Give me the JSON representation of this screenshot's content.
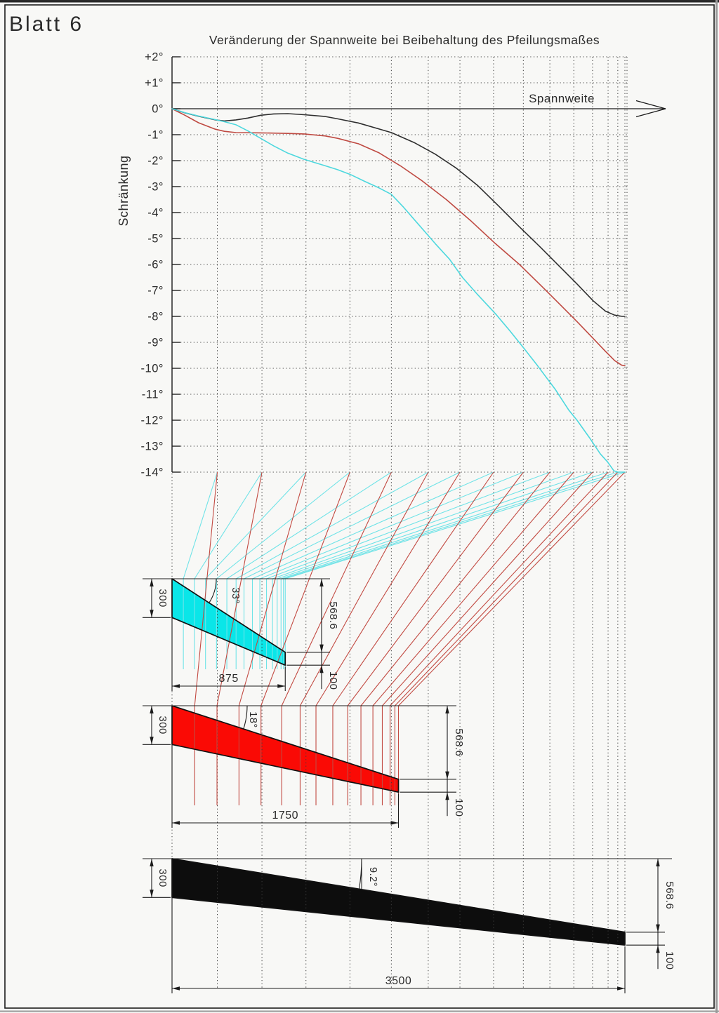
{
  "sheet": {
    "label": "Blatt 6",
    "border_color": "#1c1c1c",
    "paper_color": "#f8f8f6"
  },
  "chart": {
    "title": "Veränderung der Spannweite bei Beibehaltung des Pfeilungsmaßes",
    "xlabel": "Spannweite",
    "ylabel": "Schränkung",
    "y_ticks": [
      {
        "deg": 2,
        "label": "+2°"
      },
      {
        "deg": 1,
        "label": "+1°"
      },
      {
        "deg": 0,
        "label": "0°"
      },
      {
        "deg": -1,
        "label": "-1°"
      },
      {
        "deg": -2,
        "label": "-2°"
      },
      {
        "deg": -3,
        "label": "-3°"
      },
      {
        "deg": -4,
        "label": "-4°"
      },
      {
        "deg": -5,
        "label": "-5°"
      },
      {
        "deg": -6,
        "label": "-6°"
      },
      {
        "deg": -7,
        "label": "-7°"
      },
      {
        "deg": -8,
        "label": "-8°"
      },
      {
        "deg": -9,
        "label": "-9°"
      },
      {
        "deg": -10,
        "label": "-10°"
      },
      {
        "deg": -11,
        "label": "-11°"
      },
      {
        "deg": -12,
        "label": "-12°"
      },
      {
        "deg": -13,
        "label": "-13°"
      },
      {
        "deg": -14,
        "label": "-14°"
      }
    ],
    "span_mm": 3500,
    "stations_mm": [
      350,
      695,
      1035,
      1375,
      1695,
      1980,
      2225,
      2485,
      2715,
      2920,
      3105,
      3250,
      3370,
      3445,
      3500
    ],
    "chart_data": {
      "type": "line",
      "xlabel": "Spannweite",
      "ylabel": "Schränkung",
      "ylim": [
        -14,
        2
      ],
      "series": [
        {
          "name": "Spannweite 3500",
          "color": "#2e2e2e",
          "points": [
            [
              0,
              0
            ],
            [
              100,
              -0.16
            ],
            [
              205,
              -0.29
            ],
            [
              335,
              -0.43
            ],
            [
              405,
              -0.47
            ],
            [
              495,
              -0.43
            ],
            [
              585,
              -0.36
            ],
            [
              685,
              -0.25
            ],
            [
              785,
              -0.2
            ],
            [
              895,
              -0.19
            ],
            [
              1020,
              -0.23
            ],
            [
              1185,
              -0.3
            ],
            [
              1280,
              -0.39
            ],
            [
              1440,
              -0.55
            ],
            [
              1600,
              -0.78
            ],
            [
              1695,
              -0.92
            ],
            [
              1870,
              -1.3
            ],
            [
              2035,
              -1.75
            ],
            [
              2200,
              -2.3
            ],
            [
              2360,
              -2.95
            ],
            [
              2525,
              -3.75
            ],
            [
              2685,
              -4.55
            ],
            [
              2850,
              -5.35
            ],
            [
              3010,
              -6.15
            ],
            [
              3130,
              -6.75
            ],
            [
              3255,
              -7.4
            ],
            [
              3350,
              -7.8
            ],
            [
              3420,
              -7.95
            ],
            [
              3480,
              -8.0
            ],
            [
              3500,
              -8.0
            ]
          ]
        },
        {
          "name": "Spannweite 1750",
          "color": "#bf4a42",
          "points": [
            [
              0,
              0
            ],
            [
              100,
              -0.25
            ],
            [
              205,
              -0.54
            ],
            [
              335,
              -0.79
            ],
            [
              405,
              -0.87
            ],
            [
              495,
              -0.92
            ],
            [
              685,
              -0.93
            ],
            [
              895,
              -0.95
            ],
            [
              1020,
              -0.97
            ],
            [
              1185,
              -1.05
            ],
            [
              1280,
              -1.14
            ],
            [
              1440,
              -1.35
            ],
            [
              1600,
              -1.7
            ],
            [
              1765,
              -2.2
            ],
            [
              1925,
              -2.75
            ],
            [
              2120,
              -3.5
            ],
            [
              2305,
              -4.3
            ],
            [
              2500,
              -5.2
            ],
            [
              2685,
              -6.0
            ],
            [
              2880,
              -6.95
            ],
            [
              3010,
              -7.6
            ],
            [
              3130,
              -8.2
            ],
            [
              3255,
              -8.85
            ],
            [
              3350,
              -9.35
            ],
            [
              3420,
              -9.7
            ],
            [
              3475,
              -9.88
            ],
            [
              3500,
              -9.9
            ]
          ]
        },
        {
          "name": "Spannweite 875",
          "color": "#4dd8de",
          "points": [
            [
              0,
              0
            ],
            [
              100,
              -0.15
            ],
            [
              205,
              -0.28
            ],
            [
              335,
              -0.42
            ],
            [
              405,
              -0.5
            ],
            [
              495,
              -0.62
            ],
            [
              585,
              -0.85
            ],
            [
              685,
              -1.14
            ],
            [
              785,
              -1.43
            ],
            [
              895,
              -1.71
            ],
            [
              1020,
              -1.95
            ],
            [
              1185,
              -2.2
            ],
            [
              1280,
              -2.35
            ],
            [
              1385,
              -2.55
            ],
            [
              1490,
              -2.8
            ],
            [
              1600,
              -3.05
            ],
            [
              1695,
              -3.3
            ],
            [
              1790,
              -3.8
            ],
            [
              1895,
              -4.4
            ],
            [
              2035,
              -5.2
            ],
            [
              2145,
              -5.8
            ],
            [
              2245,
              -6.5
            ],
            [
              2360,
              -7.15
            ],
            [
              2500,
              -7.9
            ],
            [
              2610,
              -8.55
            ],
            [
              2715,
              -9.2
            ],
            [
              2825,
              -9.9
            ],
            [
              2960,
              -10.8
            ],
            [
              3065,
              -11.6
            ],
            [
              3130,
              -12.0
            ],
            [
              3230,
              -12.7
            ],
            [
              3310,
              -13.3
            ],
            [
              3365,
              -13.6
            ],
            [
              3415,
              -13.95
            ],
            [
              3445,
              -14.0
            ],
            [
              3500,
              -14.0
            ]
          ]
        }
      ]
    }
  },
  "wings": [
    {
      "name": "wing-875",
      "fill": "#0ae6e8",
      "line": "#6fe3e7",
      "scale": 0.25,
      "span_label": "875",
      "root_label": "300",
      "tip_label": "100",
      "sweep_label": "568.6",
      "angle_label": "33°"
    },
    {
      "name": "wing-1750",
      "fill": "#fa0a05",
      "line": "#c24a42",
      "scale": 0.5,
      "span_label": "1750",
      "root_label": "300",
      "tip_label": "100",
      "sweep_label": "568.6",
      "angle_label": "18°"
    },
    {
      "name": "wing-3500",
      "fill": "#0d0d0d",
      "line": "#0d0d0d",
      "scale": 1,
      "span_label": "3500",
      "root_label": "300",
      "tip_label": "100",
      "sweep_label": "568.6",
      "angle_label": "9.2°"
    }
  ],
  "dims_mm": {
    "root_chord": 300,
    "tip_chord": 100,
    "sweep": 568.6
  }
}
